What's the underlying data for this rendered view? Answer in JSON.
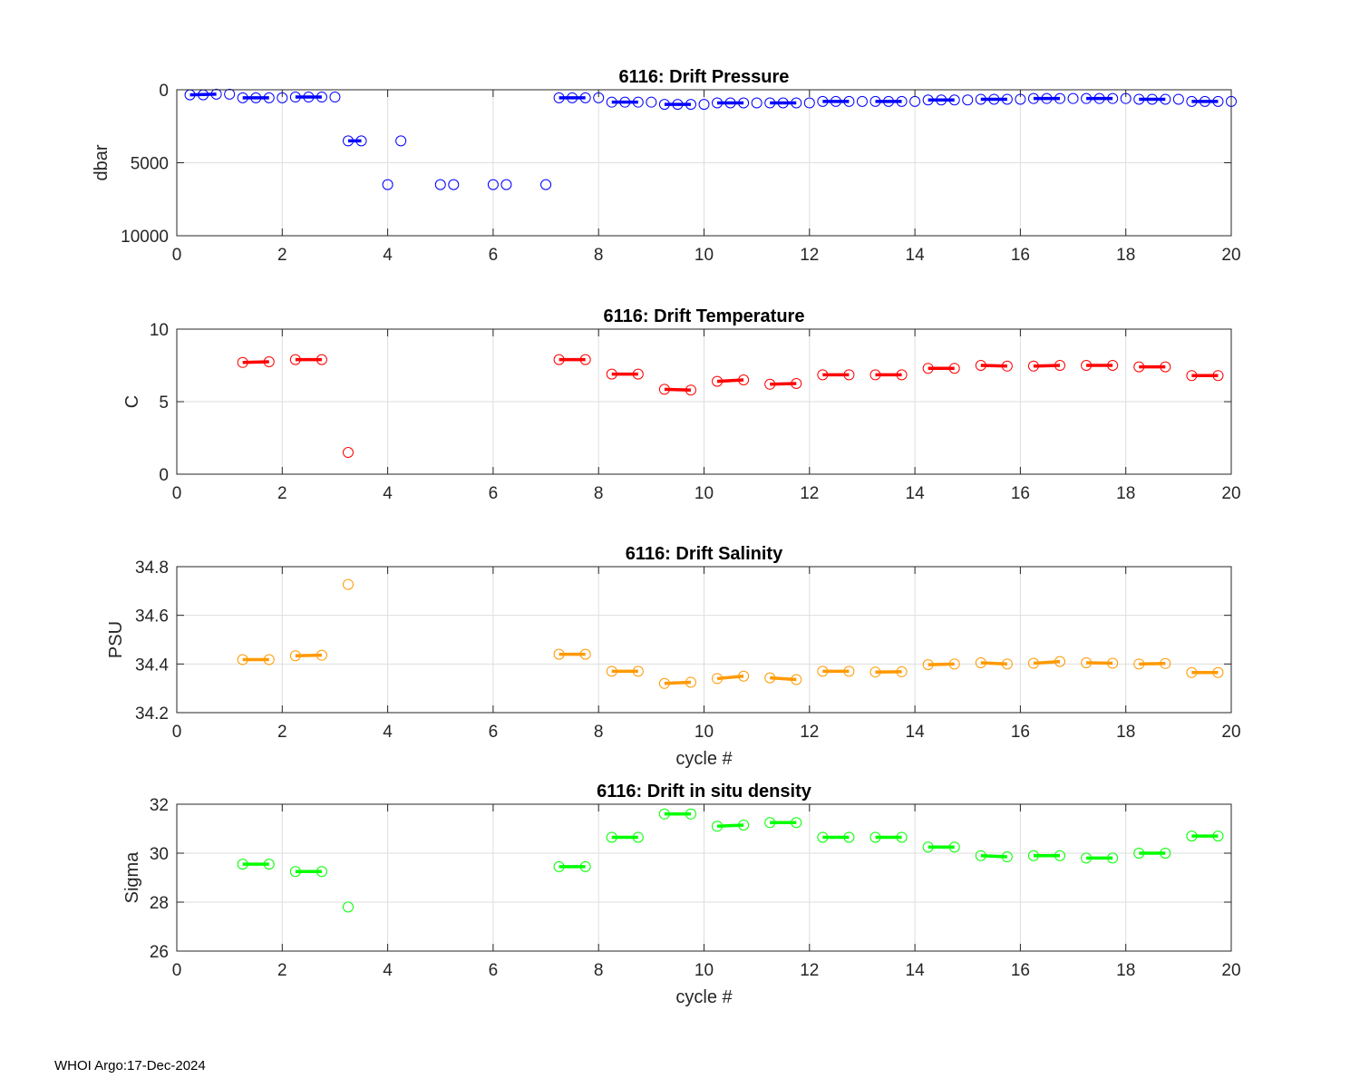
{
  "footer": "WHOI Argo:17-Dec-2024",
  "chart_data": [
    {
      "type": "scatter",
      "title": "6116: Drift Pressure",
      "xlabel": "",
      "ylabel": "dbar",
      "xlim": [
        0,
        20
      ],
      "ylim": [
        0,
        10000
      ],
      "y_reversed": true,
      "xticks": [
        0,
        2,
        4,
        6,
        8,
        10,
        12,
        14,
        16,
        18,
        20
      ],
      "yticks": [
        0,
        5000,
        10000
      ],
      "color": "#0000ff",
      "grid": true,
      "points": [
        [
          0.25,
          350
        ],
        [
          0.5,
          350
        ],
        [
          0.75,
          300
        ],
        [
          1.0,
          300
        ],
        [
          1.25,
          550
        ],
        [
          1.5,
          550
        ],
        [
          1.75,
          550
        ],
        [
          2.0,
          550
        ],
        [
          2.25,
          500
        ],
        [
          2.5,
          500
        ],
        [
          2.75,
          500
        ],
        [
          3.0,
          500
        ],
        [
          3.25,
          3500
        ],
        [
          3.5,
          3500
        ],
        [
          4.0,
          6500
        ],
        [
          4.25,
          3500
        ],
        [
          5.0,
          6500
        ],
        [
          5.25,
          6500
        ],
        [
          6.0,
          6500
        ],
        [
          6.25,
          6500
        ],
        [
          7.0,
          6500
        ],
        [
          7.25,
          550
        ],
        [
          7.5,
          550
        ],
        [
          7.75,
          550
        ],
        [
          8.0,
          550
        ],
        [
          8.25,
          850
        ],
        [
          8.5,
          850
        ],
        [
          8.75,
          850
        ],
        [
          9.0,
          850
        ],
        [
          9.25,
          1000
        ],
        [
          9.5,
          1000
        ],
        [
          9.75,
          1000
        ],
        [
          10.0,
          1000
        ],
        [
          10.25,
          900
        ],
        [
          10.5,
          900
        ],
        [
          10.75,
          900
        ],
        [
          11.0,
          900
        ],
        [
          11.25,
          900
        ],
        [
          11.5,
          900
        ],
        [
          11.75,
          900
        ],
        [
          12.0,
          900
        ],
        [
          12.25,
          800
        ],
        [
          12.5,
          800
        ],
        [
          12.75,
          800
        ],
        [
          13.0,
          800
        ],
        [
          13.25,
          800
        ],
        [
          13.5,
          800
        ],
        [
          13.75,
          800
        ],
        [
          14.0,
          800
        ],
        [
          14.25,
          700
        ],
        [
          14.5,
          700
        ],
        [
          14.75,
          700
        ],
        [
          15.0,
          700
        ],
        [
          15.25,
          650
        ],
        [
          15.5,
          650
        ],
        [
          15.75,
          650
        ],
        [
          16.0,
          650
        ],
        [
          16.25,
          600
        ],
        [
          16.5,
          600
        ],
        [
          16.75,
          600
        ],
        [
          17.0,
          600
        ],
        [
          17.25,
          600
        ],
        [
          17.5,
          600
        ],
        [
          17.75,
          600
        ],
        [
          18.0,
          600
        ],
        [
          18.25,
          650
        ],
        [
          18.5,
          650
        ],
        [
          18.75,
          650
        ],
        [
          19.0,
          650
        ],
        [
          19.25,
          800
        ],
        [
          19.5,
          800
        ],
        [
          19.75,
          800
        ],
        [
          20.0,
          800
        ]
      ],
      "segments": [
        [
          0.25,
          350,
          0.75,
          300
        ],
        [
          1.25,
          550,
          1.75,
          550
        ],
        [
          2.25,
          500,
          2.75,
          500
        ],
        [
          3.25,
          3500,
          3.5,
          3500
        ],
        [
          7.25,
          550,
          7.75,
          550
        ],
        [
          8.25,
          850,
          8.75,
          850
        ],
        [
          9.25,
          1000,
          9.75,
          1000
        ],
        [
          10.25,
          900,
          10.75,
          900
        ],
        [
          11.25,
          900,
          11.75,
          900
        ],
        [
          12.25,
          800,
          12.75,
          800
        ],
        [
          13.25,
          800,
          13.75,
          800
        ],
        [
          14.25,
          700,
          14.75,
          700
        ],
        [
          15.25,
          650,
          15.75,
          650
        ],
        [
          16.25,
          600,
          16.75,
          600
        ],
        [
          17.25,
          600,
          17.75,
          600
        ],
        [
          18.25,
          650,
          18.75,
          650
        ],
        [
          19.25,
          800,
          19.75,
          800
        ]
      ]
    },
    {
      "type": "scatter",
      "title": "6116: Drift Temperature",
      "xlabel": "",
      "ylabel": "C",
      "xlim": [
        0,
        20
      ],
      "ylim": [
        0,
        10
      ],
      "y_reversed": false,
      "xticks": [
        0,
        2,
        4,
        6,
        8,
        10,
        12,
        14,
        16,
        18,
        20
      ],
      "yticks": [
        0,
        5,
        10
      ],
      "color": "#ff0000",
      "grid": true,
      "points": [
        [
          1.25,
          7.7
        ],
        [
          1.75,
          7.75
        ],
        [
          2.25,
          7.9
        ],
        [
          2.75,
          7.9
        ],
        [
          3.25,
          1.5
        ],
        [
          7.25,
          7.9
        ],
        [
          7.75,
          7.9
        ],
        [
          8.25,
          6.9
        ],
        [
          8.75,
          6.9
        ],
        [
          9.25,
          5.85
        ],
        [
          9.75,
          5.8
        ],
        [
          10.25,
          6.4
        ],
        [
          10.75,
          6.5
        ],
        [
          11.25,
          6.2
        ],
        [
          11.75,
          6.25
        ],
        [
          12.25,
          6.85
        ],
        [
          12.75,
          6.85
        ],
        [
          13.25,
          6.85
        ],
        [
          13.75,
          6.85
        ],
        [
          14.25,
          7.3
        ],
        [
          14.75,
          7.3
        ],
        [
          15.25,
          7.5
        ],
        [
          15.75,
          7.45
        ],
        [
          16.25,
          7.45
        ],
        [
          16.75,
          7.5
        ],
        [
          17.25,
          7.5
        ],
        [
          17.75,
          7.5
        ],
        [
          18.25,
          7.4
        ],
        [
          18.75,
          7.4
        ],
        [
          19.25,
          6.8
        ],
        [
          19.75,
          6.8
        ]
      ],
      "segments": [
        [
          1.25,
          7.7,
          1.75,
          7.75
        ],
        [
          2.25,
          7.9,
          2.75,
          7.9
        ],
        [
          7.25,
          7.9,
          7.75,
          7.9
        ],
        [
          8.25,
          6.9,
          8.75,
          6.9
        ],
        [
          9.25,
          5.85,
          9.75,
          5.8
        ],
        [
          10.25,
          6.4,
          10.75,
          6.5
        ],
        [
          11.25,
          6.2,
          11.75,
          6.25
        ],
        [
          12.25,
          6.85,
          12.75,
          6.85
        ],
        [
          13.25,
          6.85,
          13.75,
          6.85
        ],
        [
          14.25,
          7.3,
          14.75,
          7.3
        ],
        [
          15.25,
          7.5,
          15.75,
          7.45
        ],
        [
          16.25,
          7.45,
          16.75,
          7.5
        ],
        [
          17.25,
          7.5,
          17.75,
          7.5
        ],
        [
          18.25,
          7.4,
          18.75,
          7.4
        ],
        [
          19.25,
          6.8,
          19.75,
          6.8
        ]
      ]
    },
    {
      "type": "scatter",
      "title": "6116: Drift Salinity",
      "xlabel": "cycle #",
      "ylabel": "PSU",
      "xlim": [
        0,
        20
      ],
      "ylim": [
        34.2,
        34.8
      ],
      "y_reversed": false,
      "xticks": [
        0,
        2,
        4,
        6,
        8,
        10,
        12,
        14,
        16,
        18,
        20
      ],
      "yticks": [
        34.2,
        34.4,
        34.6,
        34.8
      ],
      "color": "#ff9900",
      "grid": true,
      "points": [
        [
          1.25,
          34.418
        ],
        [
          1.75,
          34.418
        ],
        [
          2.25,
          34.434
        ],
        [
          2.75,
          34.436
        ],
        [
          3.25,
          34.727
        ],
        [
          7.25,
          34.44
        ],
        [
          7.75,
          34.44
        ],
        [
          8.25,
          34.37
        ],
        [
          8.75,
          34.37
        ],
        [
          9.25,
          34.32
        ],
        [
          9.75,
          34.325
        ],
        [
          10.25,
          34.34
        ],
        [
          10.75,
          34.35
        ],
        [
          11.25,
          34.343
        ],
        [
          11.75,
          34.336
        ],
        [
          12.25,
          34.37
        ],
        [
          12.75,
          34.37
        ],
        [
          13.25,
          34.367
        ],
        [
          13.75,
          34.368
        ],
        [
          14.25,
          34.397
        ],
        [
          14.75,
          34.4
        ],
        [
          15.25,
          34.405
        ],
        [
          15.75,
          34.4
        ],
        [
          16.25,
          34.403
        ],
        [
          16.75,
          34.41
        ],
        [
          17.25,
          34.405
        ],
        [
          17.75,
          34.403
        ],
        [
          18.25,
          34.4
        ],
        [
          18.75,
          34.402
        ],
        [
          19.25,
          34.365
        ],
        [
          19.75,
          34.365
        ]
      ],
      "segments": [
        [
          1.25,
          34.418,
          1.75,
          34.418
        ],
        [
          2.25,
          34.434,
          2.75,
          34.436
        ],
        [
          7.25,
          34.44,
          7.75,
          34.44
        ],
        [
          8.25,
          34.37,
          8.75,
          34.37
        ],
        [
          9.25,
          34.32,
          9.75,
          34.325
        ],
        [
          10.25,
          34.34,
          10.75,
          34.35
        ],
        [
          11.25,
          34.343,
          11.75,
          34.336
        ],
        [
          12.25,
          34.37,
          12.75,
          34.37
        ],
        [
          13.25,
          34.367,
          13.75,
          34.368
        ],
        [
          14.25,
          34.397,
          14.75,
          34.4
        ],
        [
          15.25,
          34.405,
          15.75,
          34.4
        ],
        [
          16.25,
          34.403,
          16.75,
          34.41
        ],
        [
          17.25,
          34.405,
          17.75,
          34.403
        ],
        [
          18.25,
          34.4,
          18.75,
          34.402
        ],
        [
          19.25,
          34.365,
          19.75,
          34.365
        ]
      ]
    },
    {
      "type": "scatter",
      "title": "6116: Drift in situ density",
      "xlabel": "cycle #",
      "ylabel": "Sigma",
      "xlim": [
        0,
        20
      ],
      "ylim": [
        26,
        32
      ],
      "y_reversed": false,
      "xticks": [
        0,
        2,
        4,
        6,
        8,
        10,
        12,
        14,
        16,
        18,
        20
      ],
      "yticks": [
        26,
        28,
        30,
        32
      ],
      "color": "#00ff00",
      "grid": true,
      "points": [
        [
          1.25,
          29.55
        ],
        [
          1.75,
          29.55
        ],
        [
          2.25,
          29.25
        ],
        [
          2.75,
          29.25
        ],
        [
          3.25,
          27.8
        ],
        [
          7.25,
          29.45
        ],
        [
          7.75,
          29.45
        ],
        [
          8.25,
          30.65
        ],
        [
          8.75,
          30.65
        ],
        [
          9.25,
          31.6
        ],
        [
          9.75,
          31.6
        ],
        [
          10.25,
          31.1
        ],
        [
          10.75,
          31.15
        ],
        [
          11.25,
          31.25
        ],
        [
          11.75,
          31.25
        ],
        [
          12.25,
          30.65
        ],
        [
          12.75,
          30.65
        ],
        [
          13.25,
          30.65
        ],
        [
          13.75,
          30.65
        ],
        [
          14.25,
          30.25
        ],
        [
          14.75,
          30.25
        ],
        [
          15.25,
          29.9
        ],
        [
          15.75,
          29.85
        ],
        [
          16.25,
          29.9
        ],
        [
          16.75,
          29.9
        ],
        [
          17.25,
          29.8
        ],
        [
          17.75,
          29.8
        ],
        [
          18.25,
          30.0
        ],
        [
          18.75,
          30.0
        ],
        [
          19.25,
          30.7
        ],
        [
          19.75,
          30.7
        ]
      ],
      "segments": [
        [
          1.25,
          29.55,
          1.75,
          29.55
        ],
        [
          2.25,
          29.25,
          2.75,
          29.25
        ],
        [
          7.25,
          29.45,
          7.75,
          29.45
        ],
        [
          8.25,
          30.65,
          8.75,
          30.65
        ],
        [
          9.25,
          31.6,
          9.75,
          31.6
        ],
        [
          10.25,
          31.1,
          10.75,
          31.15
        ],
        [
          11.25,
          31.25,
          11.75,
          31.25
        ],
        [
          12.25,
          30.65,
          12.75,
          30.65
        ],
        [
          13.25,
          30.65,
          13.75,
          30.65
        ],
        [
          14.25,
          30.25,
          14.75,
          30.25
        ],
        [
          15.25,
          29.9,
          15.75,
          29.85
        ],
        [
          16.25,
          29.9,
          16.75,
          29.9
        ],
        [
          17.25,
          29.8,
          17.75,
          29.8
        ],
        [
          18.25,
          30.0,
          18.75,
          30.0
        ],
        [
          19.25,
          30.7,
          19.75,
          30.7
        ]
      ]
    }
  ]
}
